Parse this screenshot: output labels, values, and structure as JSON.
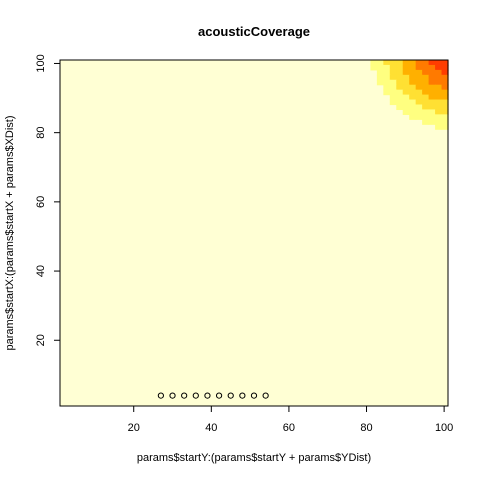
{
  "chart_data": {
    "type": "heatmap",
    "title": "acousticCoverage",
    "xlabel": "params$startY:(params$startY + params$YDist)",
    "ylabel": "params$startX:(params$startX + params$XDist)",
    "xlim": [
      1,
      101
    ],
    "ylim": [
      1,
      101
    ],
    "x_ticks": [
      20,
      40,
      60,
      80,
      100
    ],
    "y_ticks": [
      20,
      40,
      60,
      80,
      100
    ],
    "grid": false,
    "color_scale": [
      "#FFFFD4",
      "#FFFF80",
      "#FFE033",
      "#FFB000",
      "#FF7A00",
      "#FF3D00",
      "#E60000"
    ],
    "base_color": "#FFFFD4",
    "field": {
      "note_model": "coverage rises toward the top edge and especially the top-right corner",
      "edge_value_at_top": 2,
      "corner_value_top_right": 7
    },
    "points": {
      "x": [
        27,
        30,
        33,
        36,
        39,
        42,
        45,
        48,
        51,
        54
      ],
      "y": [
        4,
        4,
        4,
        4,
        4,
        4,
        4,
        4,
        4,
        4
      ]
    }
  }
}
